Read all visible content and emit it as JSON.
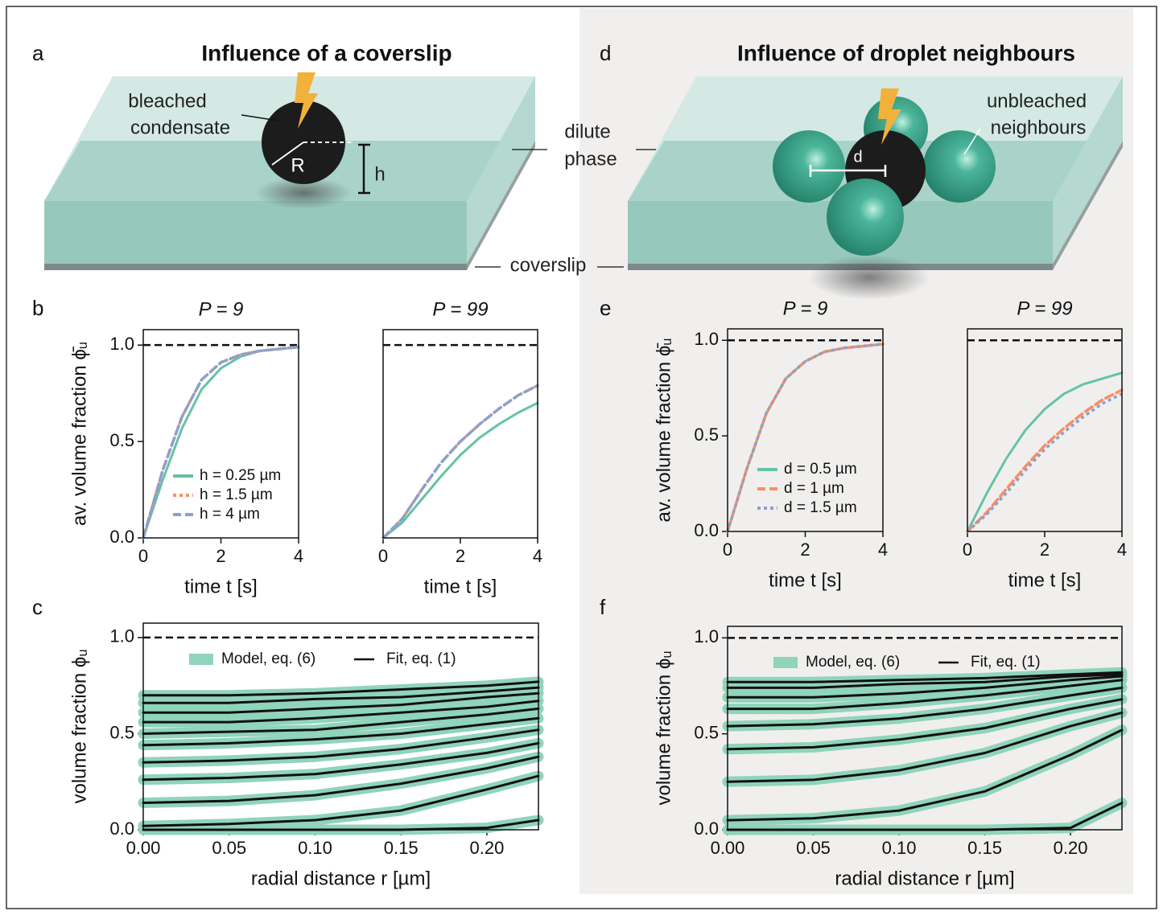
{
  "illustrations": {
    "a": {
      "label": "a",
      "title": "Influence of a coverslip",
      "texts": [
        "bleached",
        "condensate",
        "R",
        "h"
      ]
    },
    "d": {
      "label": "d",
      "title": "Influence of droplet neighbours",
      "texts": [
        "unbleached",
        "neighbours",
        "d"
      ]
    },
    "shared": [
      "dilute",
      "phase",
      "coverslip"
    ]
  },
  "chart_data": [
    {
      "type": "line",
      "panel_label": "b",
      "title": "P = 9",
      "xlabel": "time t [s]",
      "ylabel": "av. volume fraction ϕ̄ᵤ",
      "x": [
        0,
        0.5,
        1,
        1.5,
        2,
        2.5,
        3,
        3.5,
        4
      ],
      "xlim": [
        0,
        4
      ],
      "ylim": [
        0,
        1.08
      ],
      "xticks": [
        0,
        2,
        4
      ],
      "yticks": [
        {
          "value": 0,
          "label": "0.0"
        },
        0.5,
        {
          "value": 1,
          "label": "1.0"
        }
      ],
      "hline": 1,
      "legend": "lower right",
      "series": [
        {
          "name": "h = 0.25 µm",
          "color": "#66c2a5",
          "style": "solid",
          "values": [
            0,
            0.3,
            0.57,
            0.77,
            0.88,
            0.94,
            0.97,
            0.98,
            0.99
          ]
        },
        {
          "name": "h = 1.5 µm",
          "color": "#fc8d62",
          "style": "dotted",
          "values": [
            0,
            0.35,
            0.63,
            0.82,
            0.91,
            0.95,
            0.97,
            0.98,
            0.99
          ]
        },
        {
          "name": "h = 4 µm",
          "color": "#8da0cb",
          "style": "dashed",
          "values": [
            0,
            0.35,
            0.63,
            0.82,
            0.91,
            0.95,
            0.97,
            0.98,
            0.99
          ]
        }
      ]
    },
    {
      "type": "line",
      "title": "P = 99",
      "xlabel": "time t [s]",
      "x": [
        0,
        0.5,
        1,
        1.5,
        2,
        2.5,
        3,
        3.5,
        4
      ],
      "xlim": [
        0,
        4
      ],
      "ylim": [
        0,
        1.08
      ],
      "xticks": [
        0,
        2,
        4
      ],
      "hline": 1,
      "series": [
        {
          "color": "#66c2a5",
          "style": "solid",
          "values": [
            0,
            0.08,
            0.2,
            0.32,
            0.43,
            0.52,
            0.59,
            0.65,
            0.7
          ]
        },
        {
          "color": "#fc8d62",
          "style": "dotted",
          "values": [
            0,
            0.1,
            0.25,
            0.39,
            0.5,
            0.59,
            0.67,
            0.74,
            0.79
          ]
        },
        {
          "color": "#8da0cb",
          "style": "dashed",
          "values": [
            0,
            0.1,
            0.25,
            0.39,
            0.5,
            0.59,
            0.67,
            0.74,
            0.79
          ]
        }
      ]
    },
    {
      "type": "line",
      "panel_label": "c",
      "xlabel": "radial distance r [µm]",
      "ylabel": "volume fraction ϕᵤ",
      "x": [
        0,
        0.05,
        0.1,
        0.15,
        0.2,
        0.23
      ],
      "xlim": [
        0,
        0.23
      ],
      "ylim": [
        0,
        1.075
      ],
      "xticks": [
        {
          "value": 0,
          "label": "0.00"
        },
        0.05,
        {
          "value": 0.1,
          "label": "0.10"
        },
        0.15,
        {
          "value": 0.2,
          "label": "0.20"
        }
      ],
      "yticks": [
        {
          "value": 0,
          "label": "0.0"
        },
        0.5,
        {
          "value": 1,
          "label": "1.0"
        }
      ],
      "hline": 1,
      "legend": "upper center",
      "series": [
        {
          "name": "Model, eq. (6)",
          "color": "#8fd4bb",
          "style": "band",
          "curves": [
            [
              0.7,
              0.7,
              0.71,
              0.73,
              0.75,
              0.77
            ],
            [
              0.66,
              0.66,
              0.68,
              0.69,
              0.72,
              0.74
            ],
            [
              0.61,
              0.61,
              0.63,
              0.65,
              0.69,
              0.71
            ],
            [
              0.56,
              0.56,
              0.58,
              0.61,
              0.64,
              0.67
            ],
            [
              0.5,
              0.51,
              0.52,
              0.56,
              0.6,
              0.63
            ],
            [
              0.44,
              0.45,
              0.47,
              0.5,
              0.55,
              0.58
            ],
            [
              0.35,
              0.36,
              0.38,
              0.42,
              0.48,
              0.52
            ],
            [
              0.26,
              0.27,
              0.29,
              0.34,
              0.4,
              0.45
            ],
            [
              0.14,
              0.15,
              0.18,
              0.24,
              0.32,
              0.38
            ],
            [
              0.02,
              0.03,
              0.05,
              0.1,
              0.21,
              0.28
            ],
            [
              0,
              0,
              0,
              0,
              0.01,
              0.05
            ]
          ]
        },
        {
          "name": "Fit, eq. (1)",
          "color": "#111111",
          "style": "solid",
          "curves": [
            [
              0.7,
              0.7,
              0.71,
              0.73,
              0.75,
              0.77
            ],
            [
              0.66,
              0.66,
              0.68,
              0.69,
              0.72,
              0.74
            ],
            [
              0.61,
              0.61,
              0.63,
              0.65,
              0.69,
              0.71
            ],
            [
              0.56,
              0.56,
              0.58,
              0.61,
              0.64,
              0.67
            ],
            [
              0.5,
              0.51,
              0.52,
              0.56,
              0.6,
              0.63
            ],
            [
              0.44,
              0.45,
              0.47,
              0.5,
              0.55,
              0.58
            ],
            [
              0.35,
              0.36,
              0.38,
              0.42,
              0.48,
              0.52
            ],
            [
              0.26,
              0.27,
              0.29,
              0.34,
              0.4,
              0.45
            ],
            [
              0.14,
              0.15,
              0.18,
              0.24,
              0.32,
              0.38
            ],
            [
              0.02,
              0.03,
              0.05,
              0.1,
              0.21,
              0.28
            ],
            [
              0,
              0,
              0,
              0,
              0.01,
              0.05
            ]
          ]
        }
      ]
    },
    {
      "type": "line",
      "panel_label": "e",
      "title": "P = 9",
      "xlabel": "time t [s]",
      "ylabel": "av. volume fraction ϕ̄ᵤ",
      "x": [
        0,
        0.5,
        1,
        1.5,
        2,
        2.5,
        3,
        3.5,
        4
      ],
      "xlim": [
        0,
        4
      ],
      "ylim": [
        0,
        1.06
      ],
      "xticks": [
        0,
        2,
        4
      ],
      "yticks": [
        {
          "value": 0,
          "label": "0.0"
        },
        0.5,
        {
          "value": 1,
          "label": "1.0"
        }
      ],
      "hline": 1,
      "legend": "lower right",
      "series": [
        {
          "name": "d = 0.5 µm",
          "color": "#66c2a5",
          "style": "solid",
          "values": [
            0,
            0.33,
            0.62,
            0.8,
            0.89,
            0.94,
            0.96,
            0.97,
            0.98
          ]
        },
        {
          "name": "d = 1 µm",
          "color": "#fc8d62",
          "style": "dashed",
          "values": [
            0,
            0.33,
            0.62,
            0.8,
            0.89,
            0.94,
            0.96,
            0.97,
            0.98
          ]
        },
        {
          "name": "d = 1.5 µm",
          "color": "#8da0cb",
          "style": "dotted",
          "values": [
            0,
            0.33,
            0.62,
            0.8,
            0.89,
            0.94,
            0.96,
            0.97,
            0.98
          ]
        }
      ]
    },
    {
      "type": "line",
      "title": "P = 99",
      "xlabel": "time t [s]",
      "x": [
        0,
        0.5,
        1,
        1.5,
        2,
        2.5,
        3,
        3.5,
        4
      ],
      "xlim": [
        0,
        4
      ],
      "ylim": [
        0,
        1.06
      ],
      "xticks": [
        0,
        2,
        4
      ],
      "hline": 1,
      "series": [
        {
          "color": "#66c2a5",
          "style": "solid",
          "values": [
            0,
            0.2,
            0.38,
            0.53,
            0.64,
            0.72,
            0.77,
            0.8,
            0.83
          ]
        },
        {
          "color": "#fc8d62",
          "style": "dashed",
          "values": [
            0,
            0.1,
            0.22,
            0.34,
            0.45,
            0.54,
            0.62,
            0.69,
            0.74
          ]
        },
        {
          "color": "#8da0cb",
          "style": "dotted",
          "values": [
            0,
            0.09,
            0.2,
            0.32,
            0.43,
            0.52,
            0.6,
            0.67,
            0.72
          ]
        }
      ]
    },
    {
      "type": "line",
      "panel_label": "f",
      "xlabel": "radial distance r [µm]",
      "ylabel": "volume fraction ϕᵤ",
      "x": [
        0,
        0.05,
        0.1,
        0.15,
        0.2,
        0.23
      ],
      "xlim": [
        0,
        0.23
      ],
      "ylim": [
        0,
        1.06
      ],
      "xticks": [
        {
          "value": 0,
          "label": "0.00"
        },
        0.05,
        {
          "value": 0.1,
          "label": "0.10"
        },
        0.15,
        {
          "value": 0.2,
          "label": "0.20"
        }
      ],
      "yticks": [
        {
          "value": 0,
          "label": "0.0"
        },
        0.5,
        {
          "value": 1,
          "label": "1.0"
        }
      ],
      "hline": 1,
      "legend": "upper center",
      "series": [
        {
          "name": "Model, eq. (6)",
          "color": "#8fd4bb",
          "style": "band",
          "curves": [
            [
              0.77,
              0.77,
              0.78,
              0.79,
              0.81,
              0.82
            ],
            [
              0.74,
              0.74,
              0.76,
              0.77,
              0.8,
              0.81
            ],
            [
              0.69,
              0.69,
              0.71,
              0.74,
              0.78,
              0.8
            ],
            [
              0.63,
              0.63,
              0.66,
              0.7,
              0.75,
              0.78
            ],
            [
              0.54,
              0.55,
              0.58,
              0.63,
              0.7,
              0.74
            ],
            [
              0.42,
              0.43,
              0.47,
              0.53,
              0.63,
              0.68
            ],
            [
              0.25,
              0.26,
              0.31,
              0.4,
              0.54,
              0.61
            ],
            [
              0.05,
              0.06,
              0.1,
              0.2,
              0.39,
              0.52
            ],
            [
              0,
              0,
              0,
              0,
              0.01,
              0.14
            ]
          ]
        },
        {
          "name": "Fit, eq. (1)",
          "color": "#111111",
          "style": "solid",
          "curves": [
            [
              0.77,
              0.77,
              0.78,
              0.79,
              0.81,
              0.82
            ],
            [
              0.74,
              0.74,
              0.76,
              0.77,
              0.8,
              0.81
            ],
            [
              0.69,
              0.69,
              0.71,
              0.74,
              0.78,
              0.8
            ],
            [
              0.63,
              0.63,
              0.66,
              0.7,
              0.75,
              0.78
            ],
            [
              0.54,
              0.55,
              0.58,
              0.63,
              0.7,
              0.74
            ],
            [
              0.42,
              0.43,
              0.47,
              0.53,
              0.63,
              0.68
            ],
            [
              0.25,
              0.26,
              0.31,
              0.4,
              0.54,
              0.61
            ],
            [
              0.05,
              0.06,
              0.1,
              0.2,
              0.39,
              0.52
            ],
            [
              0,
              0,
              0,
              0,
              0.01,
              0.14
            ]
          ]
        }
      ]
    }
  ]
}
